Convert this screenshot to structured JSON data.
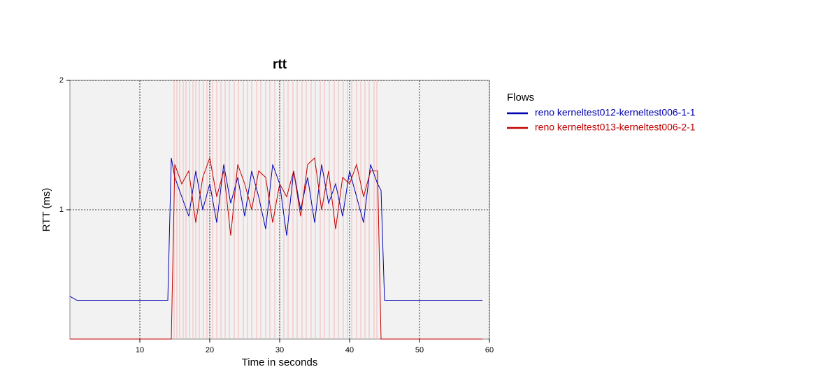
{
  "chart_data": {
    "type": "line",
    "title": "rtt",
    "xlabel": "Time in seconds",
    "ylabel": "RTT (ms)",
    "x": [
      0,
      1,
      2,
      3,
      4,
      5,
      6,
      7,
      8,
      9,
      10,
      11,
      12,
      13,
      14,
      14.5,
      15,
      16,
      17,
      18,
      19,
      20,
      21,
      22,
      23,
      24,
      25,
      26,
      27,
      28,
      29,
      30,
      31,
      32,
      33,
      34,
      35,
      36,
      37,
      38,
      39,
      40,
      41,
      42,
      43,
      44,
      44.5,
      45,
      46,
      47,
      48,
      49,
      50,
      51,
      52,
      53,
      54,
      55,
      56,
      57,
      58,
      59
    ],
    "series": [
      {
        "name": "reno kerneltest012-kerneltest006-1-1",
        "color": "#0000b0",
        "values": [
          0.33,
          0.3,
          0.3,
          0.3,
          0.3,
          0.3,
          0.3,
          0.3,
          0.3,
          0.3,
          0.3,
          0.3,
          0.3,
          0.3,
          0.3,
          1.4,
          1.25,
          1.1,
          0.95,
          1.3,
          1.0,
          1.2,
          0.9,
          1.35,
          1.05,
          1.25,
          0.95,
          1.3,
          1.1,
          0.85,
          1.35,
          1.2,
          0.8,
          1.3,
          1.0,
          1.25,
          0.9,
          1.35,
          1.05,
          1.2,
          0.95,
          1.3,
          1.1,
          0.9,
          1.35,
          1.2,
          1.15,
          0.3,
          0.3,
          0.3,
          0.3,
          0.3,
          0.3,
          0.3,
          0.3,
          0.3,
          0.3,
          0.3,
          0.3,
          0.3,
          0.3,
          0.3
        ]
      },
      {
        "name": "reno kerneltest013-kerneltest006-2-1",
        "color": "#c00000",
        "values": [
          0,
          0,
          0,
          0,
          0,
          0,
          0,
          0,
          0,
          0,
          0,
          0,
          0,
          0,
          0,
          0,
          1.35,
          1.2,
          1.3,
          0.9,
          1.25,
          1.4,
          1.1,
          1.3,
          0.8,
          1.35,
          1.2,
          1.0,
          1.3,
          1.25,
          0.9,
          1.2,
          1.1,
          1.3,
          0.95,
          1.35,
          1.4,
          1.0,
          1.3,
          0.85,
          1.25,
          1.2,
          1.35,
          1.1,
          1.3,
          1.3,
          0,
          0,
          0,
          0,
          0,
          0,
          0,
          0,
          0,
          0,
          0,
          0,
          0,
          0,
          0,
          0
        ]
      }
    ],
    "events": [
      14.9,
      15.3,
      15.7,
      16.2,
      16.6,
      17.1,
      17.6,
      18.0,
      18.5,
      19.1,
      19.6,
      20.0,
      20.4,
      21.0,
      21.6,
      22.2,
      22.8,
      23.5,
      24.1,
      24.8,
      25.4,
      26.0,
      26.7,
      27.3,
      28.0,
      28.6,
      29.3,
      30.0,
      30.6,
      31.2,
      31.9,
      32.5,
      33.2,
      33.8,
      34.5,
      35.1,
      35.8,
      36.4,
      37.1,
      37.8,
      38.4,
      39.1,
      39.7,
      40.3,
      41.0,
      41.6,
      42.2,
      42.8,
      43.5,
      43.9
    ],
    "events_color": "#f4b8b8",
    "xlim": [
      0,
      60
    ],
    "xticks": [
      10,
      20,
      30,
      40,
      50,
      60
    ],
    "ylim": [
      0,
      2
    ],
    "yticks": [
      1,
      2
    ],
    "grid": true,
    "legend_title": "Flows",
    "legend": "right"
  }
}
